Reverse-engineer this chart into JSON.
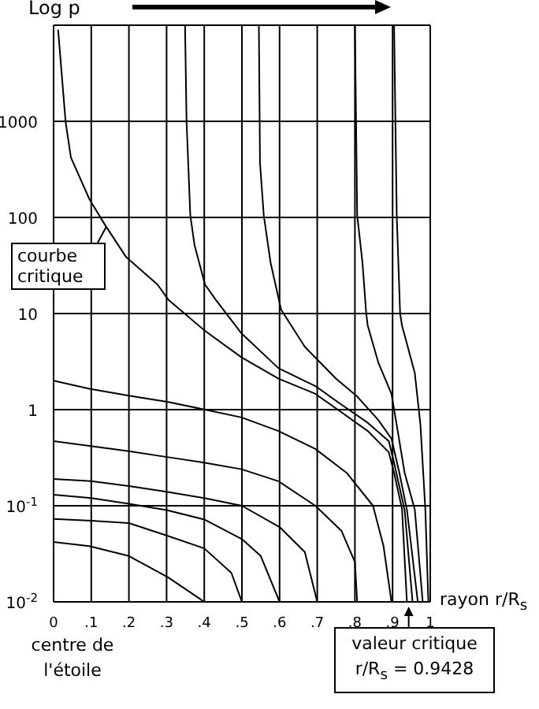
{
  "chart_data": {
    "type": "line",
    "ylabel": "Log p",
    "xlabel": "rayon r/R$_{s}$",
    "xlim": [
      0,
      1
    ],
    "xticks": [
      0,
      {
        "value": 0.1,
        "label": ".1"
      },
      {
        "value": 0.2,
        "label": ".2"
      },
      {
        "value": 0.3,
        "label": ".3"
      },
      {
        "value": 0.4,
        "label": ".4"
      },
      {
        "value": 0.5,
        "label": ".5"
      },
      {
        "value": 0.6,
        "label": ".6"
      },
      {
        "value": 0.7,
        "label": ".7"
      },
      {
        "value": 0.8,
        "label": ".8"
      },
      {
        "value": 0.9,
        "label": ".9"
      },
      1
    ],
    "ylim": [
      0.01,
      10000
    ],
    "yticks": [
      {
        "value": 0.01,
        "label": "10$^{-2}$"
      },
      {
        "value": 0.1,
        "label": "10$^{-1}$"
      },
      1,
      10,
      100,
      1000,
      {
        "value": 10000,
        "label": null
      }
    ],
    "log": "y",
    "grid": true,
    "series": [
      {
        "color": "#000000",
        "x": [
          0.012,
          0.032,
          0.046,
          0.095,
          0.137,
          0.192,
          0.276,
          0.304,
          0.402,
          0.499,
          0.597,
          0.695,
          0.764,
          0.834,
          0.89,
          0.904,
          0.925,
          0.938
        ],
        "values": [
          9000,
          980,
          420,
          155,
          83,
          39,
          20,
          14,
          6.6,
          3.5,
          2.1,
          1.46,
          0.94,
          0.6,
          0.36,
          0.22,
          0.093,
          0.01
        ]
      },
      {
        "color": "#000000",
        "x": [
          0.349,
          0.353,
          0.363,
          0.374,
          0.402,
          0.43,
          0.499,
          0.597,
          0.695,
          0.764,
          0.834,
          0.89,
          0.904,
          0.932,
          0.953
        ],
        "values": [
          9800,
          1000,
          105,
          52,
          20,
          14,
          6.2,
          2.7,
          1.76,
          1.13,
          0.73,
          0.47,
          0.28,
          0.09,
          0.01
        ]
      },
      {
        "color": "#000000",
        "x": [
          0.545,
          0.548,
          0.558,
          0.576,
          0.604,
          0.667,
          0.75,
          0.806,
          0.862,
          0.897,
          0.918,
          0.938,
          0.967
        ],
        "values": [
          9800,
          370,
          105,
          34,
          11,
          4.5,
          2.1,
          1.37,
          0.78,
          0.5,
          0.22,
          0.091,
          0.01
        ]
      },
      {
        "color": "#000000",
        "x": [
          0.8,
          0.806,
          0.82,
          0.83,
          0.834,
          0.862,
          0.897,
          0.911,
          0.932,
          0.959,
          0.98
        ],
        "values": [
          9800,
          105,
          34,
          10,
          7.5,
          3.1,
          1.46,
          0.69,
          0.22,
          0.091,
          0.01
        ]
      },
      {
        "color": "#000000",
        "x": [
          0.904,
          0.911,
          0.92,
          0.925,
          0.959,
          0.974,
          0.987,
          0.995
        ],
        "values": [
          9800,
          105,
          10,
          7.5,
          2.4,
          0.69,
          0.091,
          0.01
        ]
      },
      {
        "color": "#000000",
        "x": [
          0,
          0.095,
          0.2,
          0.304,
          0.402,
          0.499,
          0.597,
          0.695,
          0.778,
          0.848,
          0.876,
          0.897
        ],
        "values": [
          2,
          1.65,
          1.4,
          1.2,
          1,
          0.83,
          0.6,
          0.39,
          0.22,
          0.1,
          0.038,
          0.01
        ]
      },
      {
        "color": "#000000",
        "x": [
          0,
          0.095,
          0.2,
          0.304,
          0.402,
          0.499,
          0.597,
          0.695,
          0.764,
          0.8,
          0.806
        ],
        "values": [
          0.47,
          0.42,
          0.37,
          0.32,
          0.28,
          0.24,
          0.18,
          0.1,
          0.055,
          0.026,
          0.01
        ]
      },
      {
        "color": "#000000",
        "x": [
          0,
          0.1,
          0.2,
          0.3,
          0.4,
          0.5,
          0.6,
          0.667,
          0.7
        ],
        "values": [
          0.19,
          0.18,
          0.16,
          0.14,
          0.12,
          0.1,
          0.06,
          0.033,
          0.01
        ]
      },
      {
        "color": "#000000",
        "x": [
          0,
          0.1,
          0.2,
          0.3,
          0.4,
          0.5,
          0.55,
          0.6
        ],
        "values": [
          0.13,
          0.12,
          0.105,
          0.09,
          0.072,
          0.045,
          0.03,
          0.01
        ]
      },
      {
        "color": "#000000",
        "x": [
          0,
          0.1,
          0.2,
          0.3,
          0.4,
          0.472,
          0.5
        ],
        "values": [
          0.073,
          0.07,
          0.066,
          0.049,
          0.036,
          0.02,
          0.01
        ]
      },
      {
        "color": "#000000",
        "x": [
          0,
          0.095,
          0.2,
          0.304,
          0.4
        ],
        "values": [
          0.042,
          0.038,
          0.03,
          0.018,
          0.01
        ]
      }
    ],
    "annotations": [
      {
        "text": "courbe critique",
        "x": 0.14,
        "y": 80
      },
      {
        "text": "valeur critique r/R$_{s}$ = 0.9428",
        "x": 0.9428,
        "y": 0.01
      },
      "centre de l'étoile"
    ]
  }
}
